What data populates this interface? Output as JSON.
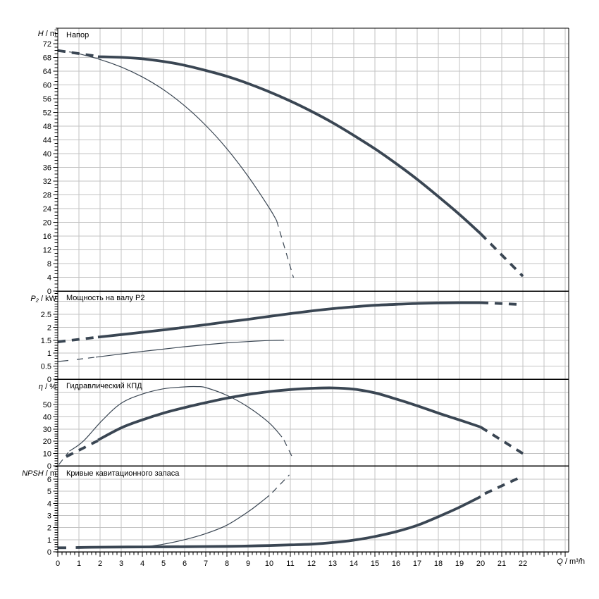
{
  "chart_data": {
    "type": "line",
    "x_axis": {
      "label_var": "Q",
      "label_unit": "/ m³/h",
      "min": 0,
      "max": 24.17,
      "labeled_ticks": [
        0,
        1,
        2,
        3,
        4,
        5,
        6,
        7,
        8,
        9,
        10,
        11,
        12,
        13,
        14,
        15,
        16,
        17,
        18,
        19,
        20,
        21,
        22
      ],
      "grid_ticks": [
        1,
        2,
        3,
        4,
        5,
        6,
        7,
        8,
        9,
        10,
        11,
        12,
        13,
        14,
        15,
        16,
        17,
        18,
        19,
        20,
        21,
        22,
        23,
        24
      ],
      "minor_step": 0.2
    },
    "panels": [
      {
        "key": "head",
        "title": "Напор",
        "axis_var": "H",
        "axis_unit": "/ m",
        "ymin": 0,
        "ymax": 76.5,
        "labeled_ticks": [
          0,
          4,
          8,
          12,
          16,
          20,
          24,
          28,
          32,
          36,
          40,
          44,
          48,
          52,
          56,
          60,
          64,
          68,
          72
        ],
        "minor_step": 1,
        "grid_step": 4,
        "series": [
          {
            "name": "selected-pump-head-curve",
            "thickness": "thick",
            "segments": [
              {
                "style": "dashed",
                "points": [
                  [
                    0,
                    70
                  ],
                  [
                    1.9,
                    68.3
                  ]
                ]
              },
              {
                "style": "solid",
                "points": [
                  [
                    1.9,
                    68.2
                  ],
                  [
                    3,
                    68.0
                  ],
                  [
                    4,
                    67.6
                  ],
                  [
                    5,
                    66.8
                  ],
                  [
                    6,
                    65.7
                  ],
                  [
                    7,
                    64.2
                  ],
                  [
                    8,
                    62.5
                  ],
                  [
                    9,
                    60.4
                  ],
                  [
                    10,
                    58.0
                  ],
                  [
                    11,
                    55.3
                  ],
                  [
                    12,
                    52.3
                  ],
                  [
                    13,
                    49.0
                  ],
                  [
                    14,
                    45.3
                  ],
                  [
                    15,
                    41.4
                  ],
                  [
                    16,
                    37.1
                  ],
                  [
                    17,
                    32.5
                  ],
                  [
                    18,
                    27.5
                  ],
                  [
                    19,
                    22.3
                  ],
                  [
                    20,
                    16.7
                  ]
                ]
              },
              {
                "style": "dashed",
                "points": [
                  [
                    20,
                    16.7
                  ],
                  [
                    22,
                    4.3
                  ]
                ]
              }
            ]
          },
          {
            "name": "reference-head-curve",
            "thickness": "thin",
            "segments": [
              {
                "style": "dashed",
                "points": [
                  [
                    0,
                    69.9
                  ],
                  [
                    0.85,
                    69.4
                  ]
                ]
              },
              {
                "style": "solid",
                "points": [
                  [
                    0.85,
                    69.3
                  ],
                  [
                    2,
                    67.4
                  ],
                  [
                    3,
                    65.2
                  ],
                  [
                    4,
                    62.3
                  ],
                  [
                    5,
                    58.6
                  ],
                  [
                    6,
                    53.9
                  ],
                  [
                    7,
                    48.2
                  ],
                  [
                    8,
                    41.4
                  ],
                  [
                    9,
                    33.4
                  ],
                  [
                    10,
                    24.2
                  ],
                  [
                    10.35,
                    20.5
                  ]
                ]
              },
              {
                "style": "dashed",
                "points": [
                  [
                    10.35,
                    20.5
                  ],
                  [
                    11.15,
                    3.9
                  ]
                ]
              }
            ]
          }
        ]
      },
      {
        "key": "power",
        "title": "Мощность на валу P2",
        "axis_var": "P₂",
        "axis_unit": "/ kW",
        "ymin": 0,
        "ymax": 3.4,
        "labeled_ticks": [
          0,
          0.5,
          1,
          1.5,
          2,
          2.5
        ],
        "minor_step": 0.1,
        "grid_step": 0.5,
        "series": [
          {
            "name": "selected-pump-power-curve",
            "thickness": "thick",
            "segments": [
              {
                "style": "dashed",
                "points": [
                  [
                    0,
                    1.44
                  ],
                  [
                    1.9,
                    1.62
                  ]
                ]
              },
              {
                "style": "solid",
                "points": [
                  [
                    1.9,
                    1.62
                  ],
                  [
                    3,
                    1.72
                  ],
                  [
                    4,
                    1.81
                  ],
                  [
                    5,
                    1.9
                  ],
                  [
                    6,
                    2.0
                  ],
                  [
                    7,
                    2.1
                  ],
                  [
                    8,
                    2.21
                  ],
                  [
                    9,
                    2.31
                  ],
                  [
                    10,
                    2.42
                  ],
                  [
                    11,
                    2.53
                  ],
                  [
                    12,
                    2.63
                  ],
                  [
                    13,
                    2.72
                  ],
                  [
                    14,
                    2.79
                  ],
                  [
                    15,
                    2.85
                  ],
                  [
                    16,
                    2.89
                  ],
                  [
                    17,
                    2.92
                  ],
                  [
                    18,
                    2.94
                  ],
                  [
                    19,
                    2.95
                  ],
                  [
                    20,
                    2.95
                  ]
                ]
              },
              {
                "style": "dashed",
                "points": [
                  [
                    20,
                    2.95
                  ],
                  [
                    21.9,
                    2.88
                  ]
                ]
              }
            ]
          },
          {
            "name": "reference-power-curve",
            "thickness": "thin",
            "segments": [
              {
                "style": "solid",
                "points": [
                  [
                    0,
                    0.68
                  ],
                  [
                    0.5,
                    0.72
                  ]
                ]
              },
              {
                "style": "dashed",
                "points": [
                  [
                    0.9,
                    0.76
                  ],
                  [
                    1.8,
                    0.85
                  ]
                ]
              },
              {
                "style": "solid",
                "points": [
                  [
                    1.8,
                    0.85
                  ],
                  [
                    3,
                    0.97
                  ],
                  [
                    4,
                    1.07
                  ],
                  [
                    5,
                    1.16
                  ],
                  [
                    6,
                    1.25
                  ],
                  [
                    7,
                    1.33
                  ],
                  [
                    8,
                    1.4
                  ],
                  [
                    9,
                    1.45
                  ],
                  [
                    10,
                    1.49
                  ],
                  [
                    10.7,
                    1.5
                  ]
                ]
              }
            ]
          }
        ]
      },
      {
        "key": "efficiency",
        "title": "Гидравлический КПД",
        "axis_var": "η",
        "axis_unit": "/ %",
        "ymin": 0,
        "ymax": 70.7,
        "labeled_ticks": [
          0,
          10,
          20,
          30,
          40,
          50
        ],
        "minor_step": 2,
        "grid_step": 10,
        "series": [
          {
            "name": "selected-pump-efficiency-curve",
            "thickness": "thick",
            "segments": [
              {
                "style": "dashed",
                "points": [
                  [
                    0.4,
                    7.5
                  ],
                  [
                    1.9,
                    20.5
                  ]
                ]
              },
              {
                "style": "solid",
                "points": [
                  [
                    1.9,
                    21
                  ],
                  [
                    3,
                    31
                  ],
                  [
                    4,
                    37.5
                  ],
                  [
                    5,
                    43
                  ],
                  [
                    6,
                    47.5
                  ],
                  [
                    7,
                    51.5
                  ],
                  [
                    8,
                    55.2
                  ],
                  [
                    9,
                    58.2
                  ],
                  [
                    10,
                    60.5
                  ],
                  [
                    11,
                    62.2
                  ],
                  [
                    12,
                    63.2
                  ],
                  [
                    13,
                    63.5
                  ],
                  [
                    14,
                    62.5
                  ],
                  [
                    15,
                    59.5
                  ],
                  [
                    16,
                    54.5
                  ],
                  [
                    17,
                    49
                  ],
                  [
                    18,
                    43
                  ],
                  [
                    19,
                    37.4
                  ],
                  [
                    20,
                    31.6
                  ]
                ]
              },
              {
                "style": "dashed",
                "points": [
                  [
                    20,
                    31.6
                  ],
                  [
                    22,
                    10
                  ]
                ]
              }
            ]
          },
          {
            "name": "reference-efficiency-curve",
            "thickness": "thin",
            "segments": [
              {
                "style": "dashed",
                "points": [
                  [
                    0.05,
                    1
                  ],
                  [
                    0.5,
                    11
                  ]
                ]
              },
              {
                "style": "solid",
                "points": [
                  [
                    0.55,
                    12
                  ],
                  [
                    1.2,
                    20
                  ],
                  [
                    2.1,
                    37
                  ],
                  [
                    3,
                    51
                  ],
                  [
                    4,
                    58.5
                  ],
                  [
                    5,
                    62.8
                  ],
                  [
                    6,
                    64.4
                  ],
                  [
                    6.6,
                    64.6
                  ],
                  [
                    7,
                    63.8
                  ],
                  [
                    8,
                    57.5
                  ],
                  [
                    9,
                    48
                  ],
                  [
                    10,
                    35
                  ],
                  [
                    10.6,
                    23.5
                  ]
                ]
              },
              {
                "style": "dashed",
                "points": [
                  [
                    10.7,
                    21
                  ],
                  [
                    11.15,
                    5
                  ]
                ]
              }
            ]
          }
        ]
      },
      {
        "key": "npsh",
        "title": "Кривые кавитационного запаса",
        "axis_var": "NPSH",
        "axis_unit": "/ m",
        "ymin": 0,
        "ymax": 7.1,
        "labeled_ticks": [
          0,
          1,
          2,
          3,
          4,
          5,
          6
        ],
        "minor_step": 0.2,
        "grid_step": 1,
        "series": [
          {
            "name": "selected-pump-npsh-curve",
            "thickness": "thick",
            "segments": [
              {
                "style": "solid",
                "points": [
                  [
                    0,
                    0.33
                  ],
                  [
                    0.4,
                    0.33
                  ]
                ]
              },
              {
                "style": "solid",
                "points": [
                  [
                    0.85,
                    0.35
                  ],
                  [
                    2,
                    0.38
                  ],
                  [
                    4,
                    0.4
                  ],
                  [
                    6,
                    0.42
                  ],
                  [
                    8,
                    0.45
                  ],
                  [
                    9,
                    0.48
                  ],
                  [
                    10,
                    0.52
                  ],
                  [
                    11,
                    0.57
                  ],
                  [
                    12,
                    0.63
                  ],
                  [
                    13,
                    0.76
                  ],
                  [
                    14,
                    0.96
                  ],
                  [
                    15,
                    1.26
                  ],
                  [
                    16,
                    1.66
                  ],
                  [
                    17,
                    2.18
                  ],
                  [
                    18,
                    2.9
                  ],
                  [
                    19,
                    3.68
                  ],
                  [
                    20,
                    4.55
                  ]
                ]
              },
              {
                "style": "dashed",
                "points": [
                  [
                    20.2,
                    4.8
                  ],
                  [
                    22,
                    6.25
                  ]
                ]
              }
            ]
          },
          {
            "name": "reference-npsh-curve",
            "thickness": "thin",
            "segments": [
              {
                "style": "solid",
                "points": [
                  [
                    4.3,
                    0.45
                  ],
                  [
                    5,
                    0.63
                  ],
                  [
                    6,
                    1.0
                  ],
                  [
                    7,
                    1.5
                  ],
                  [
                    8,
                    2.2
                  ],
                  [
                    9,
                    3.3
                  ],
                  [
                    9.5,
                    3.95
                  ],
                  [
                    10,
                    4.65
                  ]
                ]
              },
              {
                "style": "dashed",
                "points": [
                  [
                    10.15,
                    4.9
                  ],
                  [
                    10.95,
                    6.35
                  ]
                ]
              }
            ]
          }
        ]
      }
    ],
    "colors": {
      "curve": "#3a4653",
      "grid": "#c3c3c3",
      "axis": "#000000",
      "text": "#000000"
    }
  }
}
